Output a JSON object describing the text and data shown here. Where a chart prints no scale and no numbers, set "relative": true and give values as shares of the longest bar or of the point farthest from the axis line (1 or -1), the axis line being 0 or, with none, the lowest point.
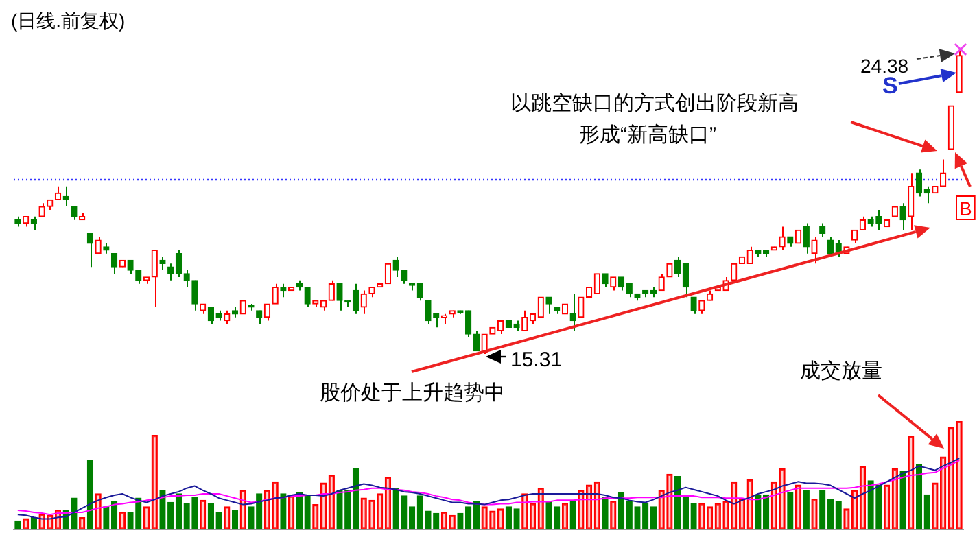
{
  "chart_data": [
    {
      "type": "candlestick",
      "title": "(日线.前复权)",
      "categories": [
        null,
        null,
        null,
        null,
        null,
        null,
        null,
        null,
        null,
        null,
        null,
        null,
        null,
        null,
        null,
        null,
        null,
        null,
        null,
        null,
        null,
        null,
        null,
        null,
        null,
        null,
        null,
        null,
        null,
        null,
        null,
        null,
        null,
        null,
        null,
        null,
        null,
        null,
        null,
        null,
        null,
        null,
        null,
        null,
        null,
        null,
        null,
        null,
        null,
        null,
        null,
        null,
        null,
        null,
        null,
        null,
        null,
        null,
        null,
        null,
        null,
        null,
        null,
        null,
        null,
        null,
        null,
        null,
        null,
        null,
        null,
        null,
        null,
        null,
        null,
        null,
        null,
        null,
        null,
        null,
        null,
        null,
        null,
        null,
        null,
        null,
        null,
        null,
        null,
        null,
        null,
        null,
        null,
        null,
        null,
        null,
        null,
        null,
        null,
        null,
        null,
        null,
        null,
        null,
        null,
        null,
        null,
        null,
        null,
        null,
        null,
        null,
        null,
        null,
        null,
        null,
        null,
        null
      ],
      "ohlc": [
        [
          19.3,
          19.4,
          19.1,
          19.2
        ],
        [
          19.2,
          19.4,
          19.1,
          19.4
        ],
        [
          19.3,
          19.4,
          19.0,
          19.2
        ],
        [
          19.4,
          19.8,
          19.4,
          19.7
        ],
        [
          19.7,
          19.9,
          19.6,
          19.9
        ],
        [
          19.9,
          20.3,
          19.9,
          20.1
        ],
        [
          20.0,
          20.3,
          19.7,
          19.9
        ],
        [
          19.7,
          19.7,
          19.3,
          19.4
        ],
        [
          19.3,
          19.5,
          19.3,
          19.4
        ],
        [
          18.9,
          18.9,
          17.9,
          18.6
        ],
        [
          18.3,
          18.8,
          18.3,
          18.7
        ],
        [
          18.5,
          18.6,
          18.3,
          18.4
        ],
        [
          18.3,
          18.3,
          17.7,
          17.9
        ],
        [
          17.9,
          18.1,
          17.9,
          18.1
        ],
        [
          18.1,
          18.1,
          17.7,
          17.8
        ],
        [
          17.8,
          17.8,
          17.4,
          17.5
        ],
        [
          17.5,
          17.6,
          17.4,
          17.6
        ],
        [
          17.6,
          18.4,
          16.7,
          18.4
        ],
        [
          18.1,
          18.2,
          17.8,
          18.0
        ],
        [
          17.9,
          18.0,
          17.5,
          17.7
        ],
        [
          18.3,
          18.4,
          17.6,
          17.7
        ],
        [
          17.7,
          17.8,
          17.3,
          17.5
        ],
        [
          17.5,
          17.5,
          16.6,
          16.8
        ],
        [
          16.6,
          16.8,
          16.5,
          16.8
        ],
        [
          16.7,
          16.7,
          16.2,
          16.3
        ],
        [
          16.5,
          16.6,
          16.3,
          16.4
        ],
        [
          16.3,
          16.6,
          16.2,
          16.5
        ],
        [
          16.6,
          16.7,
          16.4,
          16.5
        ],
        [
          16.5,
          16.9,
          16.5,
          16.9
        ],
        [
          16.75,
          16.8,
          16.6,
          16.7
        ],
        [
          16.6,
          16.6,
          16.2,
          16.4
        ],
        [
          16.4,
          16.8,
          16.3,
          16.8
        ],
        [
          16.8,
          17.4,
          16.8,
          17.3
        ],
        [
          17.3,
          17.4,
          17.0,
          17.2
        ],
        [
          17.2,
          17.3,
          17.2,
          17.3
        ],
        [
          17.4,
          17.5,
          17.2,
          17.3
        ],
        [
          17.3,
          17.3,
          16.7,
          16.8
        ],
        [
          16.8,
          16.9,
          16.7,
          16.9
        ],
        [
          16.7,
          16.9,
          16.6,
          16.9
        ],
        [
          16.9,
          17.5,
          16.9,
          17.4
        ],
        [
          17.4,
          17.4,
          16.6,
          16.9
        ],
        [
          16.9,
          16.9,
          16.7,
          16.85
        ],
        [
          17.2,
          17.4,
          16.5,
          16.6
        ],
        [
          16.7,
          17.2,
          16.5,
          17.1
        ],
        [
          17.1,
          17.3,
          17.0,
          17.3
        ],
        [
          17.3,
          17.4,
          17.3,
          17.4
        ],
        [
          17.4,
          18.0,
          17.4,
          18.0
        ],
        [
          18.1,
          18.2,
          17.6,
          17.8
        ],
        [
          17.8,
          17.8,
          17.4,
          17.5
        ],
        [
          17.4,
          17.4,
          17.2,
          17.35
        ],
        [
          17.4,
          17.4,
          16.9,
          17.0
        ],
        [
          16.9,
          16.9,
          16.2,
          16.3
        ],
        [
          16.5,
          16.5,
          16.1,
          16.4
        ],
        [
          16.4,
          16.5,
          16.2,
          16.45
        ],
        [
          16.5,
          16.6,
          16.4,
          16.6
        ],
        [
          16.6,
          16.6,
          16.5,
          16.55
        ],
        [
          16.6,
          16.6,
          15.8,
          15.9
        ],
        [
          15.9,
          16.0,
          15.4,
          15.4
        ],
        [
          15.35,
          15.9,
          15.31,
          15.9
        ],
        [
          15.9,
          16.1,
          15.9,
          16.1
        ],
        [
          16.0,
          16.3,
          15.9,
          16.3
        ],
        [
          16.3,
          16.3,
          16.1,
          16.1
        ],
        [
          16.2,
          16.3,
          16.0,
          16.1
        ],
        [
          16.0,
          16.6,
          16.0,
          16.4
        ],
        [
          16.3,
          16.5,
          16.2,
          16.5
        ],
        [
          16.4,
          17.0,
          16.4,
          17.0
        ],
        [
          17.0,
          17.0,
          16.5,
          16.8
        ],
        [
          16.7,
          16.7,
          16.5,
          16.6
        ],
        [
          16.5,
          16.8,
          16.5,
          16.8
        ],
        [
          16.5,
          17.1,
          16.0,
          16.3
        ],
        [
          16.4,
          17.0,
          16.4,
          17.0
        ],
        [
          17.0,
          17.3,
          17.0,
          17.3
        ],
        [
          17.1,
          17.7,
          17.1,
          17.7
        ],
        [
          17.7,
          17.7,
          17.3,
          17.4
        ],
        [
          17.3,
          17.6,
          17.2,
          17.6
        ],
        [
          17.6,
          17.6,
          17.2,
          17.3
        ],
        [
          17.4,
          17.4,
          17.0,
          17.1
        ],
        [
          17.1,
          17.1,
          16.9,
          17.0
        ],
        [
          17.2,
          17.2,
          17.0,
          17.1
        ],
        [
          17.2,
          17.3,
          17.0,
          17.1
        ],
        [
          17.2,
          17.7,
          17.2,
          17.6
        ],
        [
          17.6,
          18.0,
          17.6,
          18.0
        ],
        [
          18.1,
          18.2,
          17.6,
          17.7
        ],
        [
          18.0,
          18.0,
          17.0,
          17.3
        ],
        [
          17.0,
          17.0,
          16.5,
          16.6
        ],
        [
          16.6,
          16.9,
          16.5,
          16.9
        ],
        [
          16.9,
          17.2,
          16.9,
          17.1
        ],
        [
          17.2,
          17.3,
          17.2,
          17.3
        ],
        [
          17.2,
          17.6,
          17.2,
          17.5
        ],
        [
          17.5,
          18.0,
          17.5,
          18.0
        ],
        [
          18.0,
          18.2,
          18.0,
          18.2
        ],
        [
          18.0,
          18.5,
          18.0,
          18.4
        ],
        [
          18.4,
          18.4,
          18.2,
          18.3
        ],
        [
          18.4,
          18.4,
          18.2,
          18.3
        ],
        [
          18.4,
          18.5,
          18.4,
          18.5
        ],
        [
          18.5,
          19.1,
          18.4,
          18.8
        ],
        [
          18.8,
          18.8,
          18.5,
          18.6
        ],
        [
          18.6,
          19.0,
          18.6,
          19.0
        ],
        [
          19.1,
          19.2,
          18.3,
          18.5
        ],
        [
          18.3,
          18.8,
          18.0,
          18.7
        ],
        [
          19.1,
          19.2,
          18.8,
          18.9
        ],
        [
          18.7,
          18.8,
          18.3,
          18.3
        ],
        [
          18.6,
          18.7,
          18.2,
          18.3
        ],
        [
          18.3,
          18.5,
          18.3,
          18.5
        ],
        [
          18.7,
          19.0,
          18.6,
          19.0
        ],
        [
          19.0,
          19.4,
          19.0,
          19.3
        ],
        [
          19.3,
          19.4,
          19.1,
          19.2
        ],
        [
          19.4,
          19.6,
          19.0,
          19.2
        ],
        [
          19.1,
          19.3,
          19.1,
          19.3
        ],
        [
          19.4,
          19.7,
          19.4,
          19.7
        ],
        [
          19.7,
          19.8,
          19.0,
          19.3
        ],
        [
          19.4,
          20.7,
          19.0,
          20.3
        ],
        [
          20.7,
          20.8,
          20.0,
          20.1
        ],
        [
          20.2,
          20.3,
          19.8,
          20.1
        ],
        [
          20.1,
          20.3,
          20.1,
          20.3
        ],
        [
          20.3,
          21.1,
          20.3,
          20.7
        ],
        [
          21.4,
          22.7,
          21.4,
          22.7
        ],
        [
          23.1,
          24.38,
          23.1,
          24.2
        ]
      ],
      "colors": [
        "#008000",
        "#ff0000",
        "#008000",
        "#ff0000",
        "#ff0000",
        "#ff0000",
        "#008000",
        "#008000",
        "#ff0000",
        "#008000",
        "#ff0000",
        "#008000",
        "#008000",
        "#ff0000",
        "#008000",
        "#008000",
        "#ff0000",
        "#ff0000",
        "#008000",
        "#008000",
        "#008000",
        "#008000",
        "#008000",
        "#ff0000",
        "#008000",
        "#008000",
        "#ff0000",
        "#008000",
        "#ff0000",
        "#008000",
        "#008000",
        "#ff0000",
        "#ff0000",
        "#008000",
        "#ff0000",
        "#008000",
        "#008000",
        "#ff0000",
        "#ff0000",
        "#ff0000",
        "#008000",
        "#008000",
        "#008000",
        "#ff0000",
        "#ff0000",
        "#ff0000",
        "#ff0000",
        "#008000",
        "#008000",
        "#008000",
        "#008000",
        "#008000",
        "#008000",
        "#ff0000",
        "#ff0000",
        "#008000",
        "#008000",
        "#008000",
        "#ff0000",
        "#ff0000",
        "#ff0000",
        "#008000",
        "#008000",
        "#ff0000",
        "#ff0000",
        "#ff0000",
        "#008000",
        "#008000",
        "#ff0000",
        "#008000",
        "#ff0000",
        "#ff0000",
        "#ff0000",
        "#008000",
        "#ff0000",
        "#008000",
        "#008000",
        "#008000",
        "#008000",
        "#008000",
        "#ff0000",
        "#ff0000",
        "#008000",
        "#008000",
        "#008000",
        "#ff0000",
        "#ff0000",
        "#ff0000",
        "#ff0000",
        "#ff0000",
        "#ff0000",
        "#ff0000",
        "#008000",
        "#008000",
        "#ff0000",
        "#ff0000",
        "#008000",
        "#ff0000",
        "#008000",
        "#ff0000",
        "#008000",
        "#008000",
        "#008000",
        "#ff0000",
        "#ff0000",
        "#ff0000",
        "#008000",
        "#008000",
        "#ff0000",
        "#ff0000",
        "#008000",
        "#ff0000",
        "#008000",
        "#008000",
        "#ff0000",
        "#ff0000",
        "#ff0000",
        "#ff0000"
      ],
      "ref_lines": [
        {
          "axis": "y",
          "value": 20.5,
          "color": "#3333ff",
          "line_style": "dotted"
        }
      ],
      "annotations": [
        "以跳空缺口的方式创出阶段新高",
        "形成“新高缺口”",
        "股价处于上升趋势中",
        "S",
        "B",
        "24.38",
        "15.31"
      ]
    },
    {
      "type": "bar",
      "relative": true,
      "categories": [
        null,
        null,
        null,
        null,
        null,
        null,
        null,
        null,
        null,
        null,
        null,
        null,
        null,
        null,
        null,
        null,
        null,
        null,
        null,
        null,
        null,
        null,
        null,
        null,
        null,
        null,
        null,
        null,
        null,
        null,
        null,
        null,
        null,
        null,
        null,
        null,
        null,
        null,
        null,
        null,
        null,
        null,
        null,
        null,
        null,
        null,
        null,
        null,
        null,
        null,
        null,
        null,
        null,
        null,
        null,
        null,
        null,
        null,
        null,
        null,
        null,
        null,
        null,
        null,
        null,
        null,
        null,
        null,
        null,
        null,
        null,
        null,
        null,
        null,
        null,
        null,
        null,
        null,
        null,
        null,
        null,
        null,
        null,
        null,
        null,
        null,
        null,
        null,
        null,
        null,
        null,
        null,
        null,
        null,
        null,
        null,
        null,
        null,
        null,
        null,
        null,
        null,
        null,
        null,
        null,
        null,
        null,
        null,
        null,
        null,
        null,
        null,
        null,
        null,
        null,
        null,
        null,
        null
      ],
      "values": [
        0.08,
        0.1,
        0.11,
        0.14,
        0.13,
        0.18,
        0.18,
        0.29,
        0.11,
        0.64,
        0.33,
        0.21,
        0.26,
        0.16,
        0.16,
        0.29,
        0.21,
        0.87,
        0.36,
        0.25,
        0.33,
        0.24,
        0.3,
        0.27,
        0.24,
        0.16,
        0.21,
        0.18,
        0.36,
        0.21,
        0.33,
        0.36,
        0.44,
        0.33,
        0.31,
        0.34,
        0.31,
        0.23,
        0.43,
        0.5,
        0.36,
        0.36,
        0.56,
        0.29,
        0.27,
        0.33,
        0.48,
        0.38,
        0.31,
        0.21,
        0.31,
        0.17,
        0.15,
        0.16,
        0.13,
        0.15,
        0.21,
        0.26,
        0.21,
        0.17,
        0.19,
        0.21,
        0.19,
        0.33,
        0.24,
        0.38,
        0.26,
        0.21,
        0.24,
        0.26,
        0.36,
        0.41,
        0.44,
        0.3,
        0.26,
        0.34,
        0.26,
        0.21,
        0.24,
        0.21,
        0.36,
        0.51,
        0.49,
        0.3,
        0.24,
        0.24,
        0.21,
        0.24,
        0.26,
        0.44,
        0.28,
        0.46,
        0.32,
        0.32,
        0.44,
        0.56,
        0.34,
        0.41,
        0.36,
        0.28,
        0.36,
        0.28,
        0.26,
        0.19,
        0.36,
        0.58,
        0.45,
        0.41,
        0.41,
        0.56,
        0.54,
        0.86,
        0.6,
        0.32,
        0.43,
        0.67,
        0.94,
        1
      ],
      "colors": [
        "#008000",
        "#ff0000",
        "#008000",
        "#ff0000",
        "#ff0000",
        "#ff0000",
        "#008000",
        "#008000",
        "#ff0000",
        "#008000",
        "#ff0000",
        "#008000",
        "#008000",
        "#ff0000",
        "#008000",
        "#008000",
        "#ff0000",
        "#ff0000",
        "#008000",
        "#008000",
        "#008000",
        "#008000",
        "#008000",
        "#ff0000",
        "#008000",
        "#008000",
        "#ff0000",
        "#008000",
        "#ff0000",
        "#008000",
        "#008000",
        "#ff0000",
        "#ff0000",
        "#008000",
        "#ff0000",
        "#008000",
        "#008000",
        "#ff0000",
        "#ff0000",
        "#ff0000",
        "#008000",
        "#008000",
        "#008000",
        "#ff0000",
        "#ff0000",
        "#ff0000",
        "#ff0000",
        "#008000",
        "#008000",
        "#008000",
        "#008000",
        "#008000",
        "#008000",
        "#ff0000",
        "#ff0000",
        "#008000",
        "#008000",
        "#008000",
        "#ff0000",
        "#ff0000",
        "#ff0000",
        "#008000",
        "#008000",
        "#ff0000",
        "#ff0000",
        "#ff0000",
        "#008000",
        "#008000",
        "#ff0000",
        "#008000",
        "#ff0000",
        "#ff0000",
        "#ff0000",
        "#008000",
        "#ff0000",
        "#008000",
        "#008000",
        "#008000",
        "#008000",
        "#008000",
        "#ff0000",
        "#ff0000",
        "#008000",
        "#008000",
        "#008000",
        "#ff0000",
        "#ff0000",
        "#ff0000",
        "#ff0000",
        "#ff0000",
        "#ff0000",
        "#ff0000",
        "#008000",
        "#008000",
        "#ff0000",
        "#ff0000",
        "#008000",
        "#ff0000",
        "#008000",
        "#ff0000",
        "#008000",
        "#008000",
        "#008000",
        "#ff0000",
        "#ff0000",
        "#ff0000",
        "#008000",
        "#008000",
        "#ff0000",
        "#ff0000",
        "#008000",
        "#ff0000",
        "#008000",
        "#008000",
        "#ff0000",
        "#ff0000",
        "#ff0000",
        "#ff0000"
      ],
      "annotations": [
        "成交放量"
      ]
    },
    {
      "type": "line",
      "relative": true,
      "categories": [
        null,
        null,
        null,
        null,
        null,
        null,
        null,
        null,
        null,
        null,
        null,
        null,
        null,
        null,
        null,
        null,
        null,
        null,
        null,
        null,
        null,
        null,
        null,
        null,
        null,
        null,
        null,
        null,
        null,
        null,
        null,
        null,
        null,
        null,
        null,
        null,
        null,
        null,
        null,
        null,
        null,
        null,
        null,
        null,
        null,
        null,
        null,
        null,
        null,
        null,
        null,
        null,
        null,
        null,
        null,
        null,
        null,
        null,
        null,
        null,
        null,
        null,
        null,
        null,
        null,
        null,
        null,
        null,
        null,
        null,
        null,
        null,
        null,
        null,
        null,
        null,
        null,
        null,
        null,
        null,
        null,
        null,
        null,
        null,
        null,
        null,
        null,
        null,
        null,
        null,
        null,
        null,
        null,
        null,
        null,
        null,
        null,
        null,
        null,
        null,
        null,
        null,
        null,
        null,
        null,
        null,
        null,
        null,
        null,
        null,
        null,
        null,
        null,
        null,
        null,
        null,
        null,
        null
      ],
      "series": [
        {
          "color": "#1a1a99",
          "values": [
            0.21,
            0.2,
            0.17,
            0.15,
            0.15,
            0.17,
            0.18,
            0.24,
            0.3,
            0.36,
            0.41,
            0.45,
            0.48,
            0.5,
            0.45,
            0.41,
            0.38,
            0.42,
            0.47,
            0.5,
            0.53,
            0.58,
            0.61,
            0.55,
            0.5,
            0.44,
            0.41,
            0.38,
            0.35,
            0.36,
            0.39,
            0.41,
            0.44,
            0.45,
            0.48,
            0.5,
            0.48,
            0.48,
            0.47,
            0.5,
            0.55,
            0.58,
            0.61,
            0.64,
            0.62,
            0.59,
            0.58,
            0.56,
            0.53,
            0.52,
            0.5,
            0.47,
            0.44,
            0.41,
            0.38,
            0.38,
            0.36,
            0.36,
            0.35,
            0.38,
            0.41,
            0.42,
            0.45,
            0.48,
            0.5,
            0.5,
            0.5,
            0.5,
            0.5,
            0.5,
            0.5,
            0.5,
            0.5,
            0.48,
            0.45,
            0.44,
            0.41,
            0.39,
            0.38,
            0.42,
            0.47,
            0.52,
            0.55,
            0.59,
            0.56,
            0.53,
            0.5,
            0.47,
            0.41,
            0.36,
            0.41,
            0.45,
            0.5,
            0.53,
            0.56,
            0.61,
            0.64,
            0.67,
            0.65,
            0.65,
            0.64,
            0.62,
            0.56,
            0.5,
            0.44,
            0.5,
            0.55,
            0.61,
            0.67,
            0.73,
            0.79,
            0.83,
            0.89,
            0.86,
            0.83,
            0.89,
            0.94,
            1
          ]
        },
        {
          "color": "#ff00ff",
          "values": [
            0.27,
            0.26,
            0.24,
            0.23,
            0.21,
            0.23,
            0.23,
            0.24,
            0.24,
            0.27,
            0.3,
            0.32,
            0.35,
            0.36,
            0.38,
            0.39,
            0.41,
            0.42,
            0.45,
            0.47,
            0.47,
            0.48,
            0.48,
            0.5,
            0.5,
            0.5,
            0.47,
            0.44,
            0.41,
            0.38,
            0.39,
            0.42,
            0.44,
            0.45,
            0.47,
            0.47,
            0.48,
            0.48,
            0.5,
            0.5,
            0.52,
            0.53,
            0.55,
            0.56,
            0.58,
            0.58,
            0.56,
            0.56,
            0.55,
            0.53,
            0.52,
            0.5,
            0.47,
            0.45,
            0.42,
            0.41,
            0.38,
            0.36,
            0.35,
            0.35,
            0.36,
            0.36,
            0.38,
            0.38,
            0.39,
            0.39,
            0.39,
            0.41,
            0.41,
            0.41,
            0.42,
            0.42,
            0.42,
            0.44,
            0.44,
            0.44,
            0.44,
            0.45,
            0.45,
            0.45,
            0.45,
            0.47,
            0.47,
            0.47,
            0.47,
            0.45,
            0.45,
            0.45,
            0.44,
            0.44,
            0.44,
            0.42,
            0.42,
            0.45,
            0.48,
            0.52,
            0.55,
            0.58,
            0.58,
            0.58,
            0.58,
            0.58,
            0.58,
            0.58,
            0.59,
            0.61,
            0.62,
            0.64,
            0.67,
            0.7,
            0.73,
            0.76,
            0.77,
            0.79,
            0.8,
            0.86,
            0.91,
            0.97
          ]
        }
      ]
    }
  ]
}
